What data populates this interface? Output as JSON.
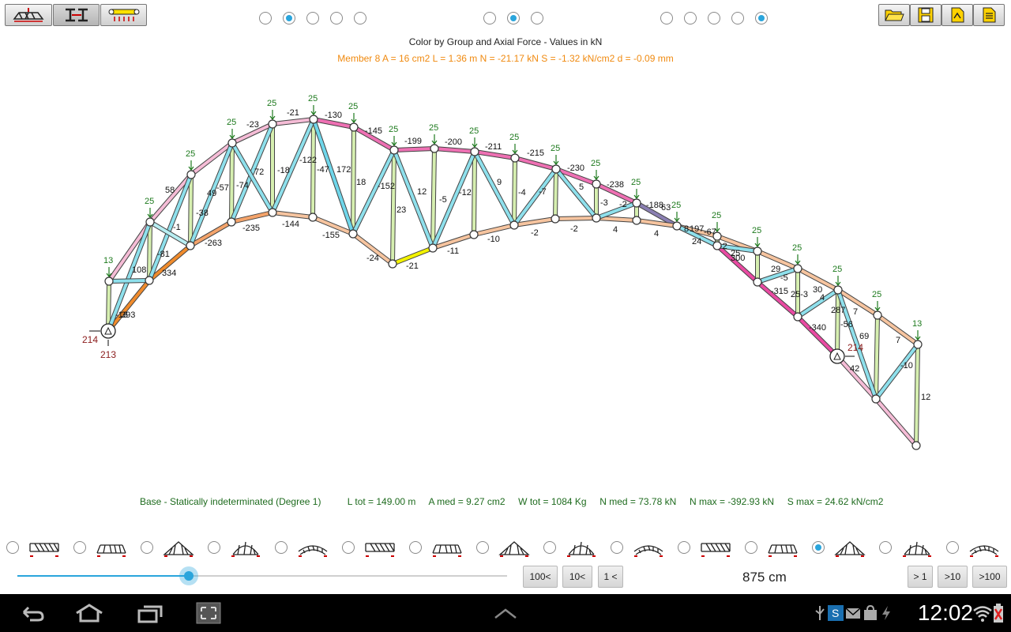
{
  "header": {
    "title": "Color by Group and Axial Force - Values in kN",
    "member_info": "Member 8   A = 16 cm2   L = 1.36 m   N = -21.17 kN   S = -1.32 kN/cm2   d = -0.09 mm"
  },
  "toolbar": {
    "left": [
      "loads-tool",
      "section-tool",
      "load-distribution-tool"
    ],
    "right": [
      "open-file",
      "save-file",
      "export-file",
      "report-file"
    ]
  },
  "radio_groups": [
    {
      "count": 5,
      "selected": 1
    },
    {
      "count": 3,
      "selected": 1
    },
    {
      "count": 5,
      "selected": 4
    }
  ],
  "stats": {
    "base": "Base - Statically indeterminated (Degree 1)",
    "l_tot": "L tot = 149.00 m",
    "a_med": "A med = 9.27 cm2",
    "w_tot": "W tot = 1084 Kg",
    "n_med": "N med = 73.78 kN",
    "n_max": "N max = -392.93 kN",
    "s_max": "S max = 24.62 kN/cm2"
  },
  "support_reactions": {
    "left_h": "214",
    "left_v": "213",
    "right": "214"
  },
  "truss_types": {
    "count": 15,
    "selected": 12
  },
  "slider": {
    "value_percent": 35
  },
  "step_buttons": {
    "back100": "100<",
    "back10": "10<",
    "back1": "1 <",
    "fwd1": "> 1",
    "fwd10": ">10",
    "fwd100": ">100"
  },
  "length_value": "875 cm",
  "status_bar": {
    "time": "12:02"
  },
  "colors": {
    "accent": "#2aa5dc",
    "info": "#f08a10",
    "stats": "#1e6b1e",
    "load": "#1e7a1e"
  }
}
